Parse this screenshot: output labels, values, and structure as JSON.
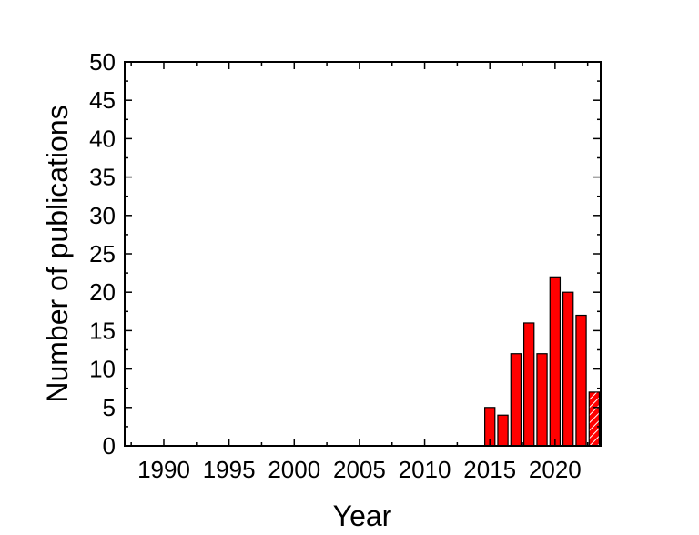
{
  "chart_data": {
    "type": "bar",
    "title": "",
    "xlabel": "Year",
    "ylabel": "Number of publications",
    "xlim": [
      1987,
      2023.5
    ],
    "ylim": [
      0,
      50
    ],
    "x_ticks": [
      "1990",
      "1995",
      "2000",
      "2005",
      "2010",
      "2015",
      "2020"
    ],
    "y_ticks": [
      "0",
      "5",
      "10",
      "15",
      "20",
      "25",
      "30",
      "35",
      "40",
      "45",
      "50"
    ],
    "grid": false,
    "legend": "none",
    "bar_color": "#ff0000",
    "bar_edge_color": "#000000",
    "partial_bar_note_pattern": "hatched",
    "x": [
      2015,
      2016,
      2017,
      2018,
      2019,
      2020,
      2021,
      2022,
      2023
    ],
    "values": [
      5,
      4,
      12,
      16,
      12,
      22,
      20,
      17,
      7
    ],
    "hatched": [
      false,
      false,
      false,
      false,
      false,
      false,
      false,
      false,
      true
    ]
  }
}
